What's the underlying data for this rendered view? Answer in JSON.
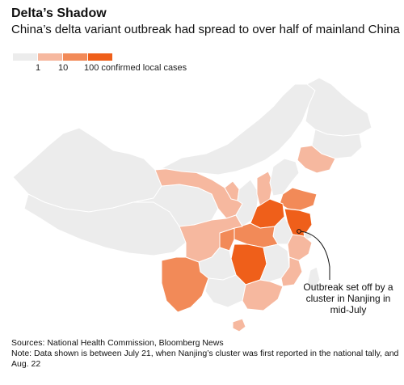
{
  "header": {
    "title": "Delta’s Shadow",
    "subtitle": "China’s delta variant outbreak had spread to over half of mainland China"
  },
  "legend": {
    "labels": [
      "1",
      "10",
      "100 confirmed local cases"
    ],
    "colors": [
      "#ececec",
      "#f6b89f",
      "#f28a58",
      "#ef5f1a"
    ]
  },
  "map": {
    "annotation": "Outbreak set off by a cluster in Nanjing in mid-July",
    "fill_colors": {
      "none": "#ececec",
      "low": "#f6b89f",
      "mid": "#f28a58",
      "high": "#ef5f1a"
    }
  },
  "footer": {
    "sources": "Sources: National Health Commission, Bloomberg News",
    "note": "Note: Data shown is between July 21, when Nanjing’s cluster was first reported in the national tally, and Aug. 22"
  }
}
